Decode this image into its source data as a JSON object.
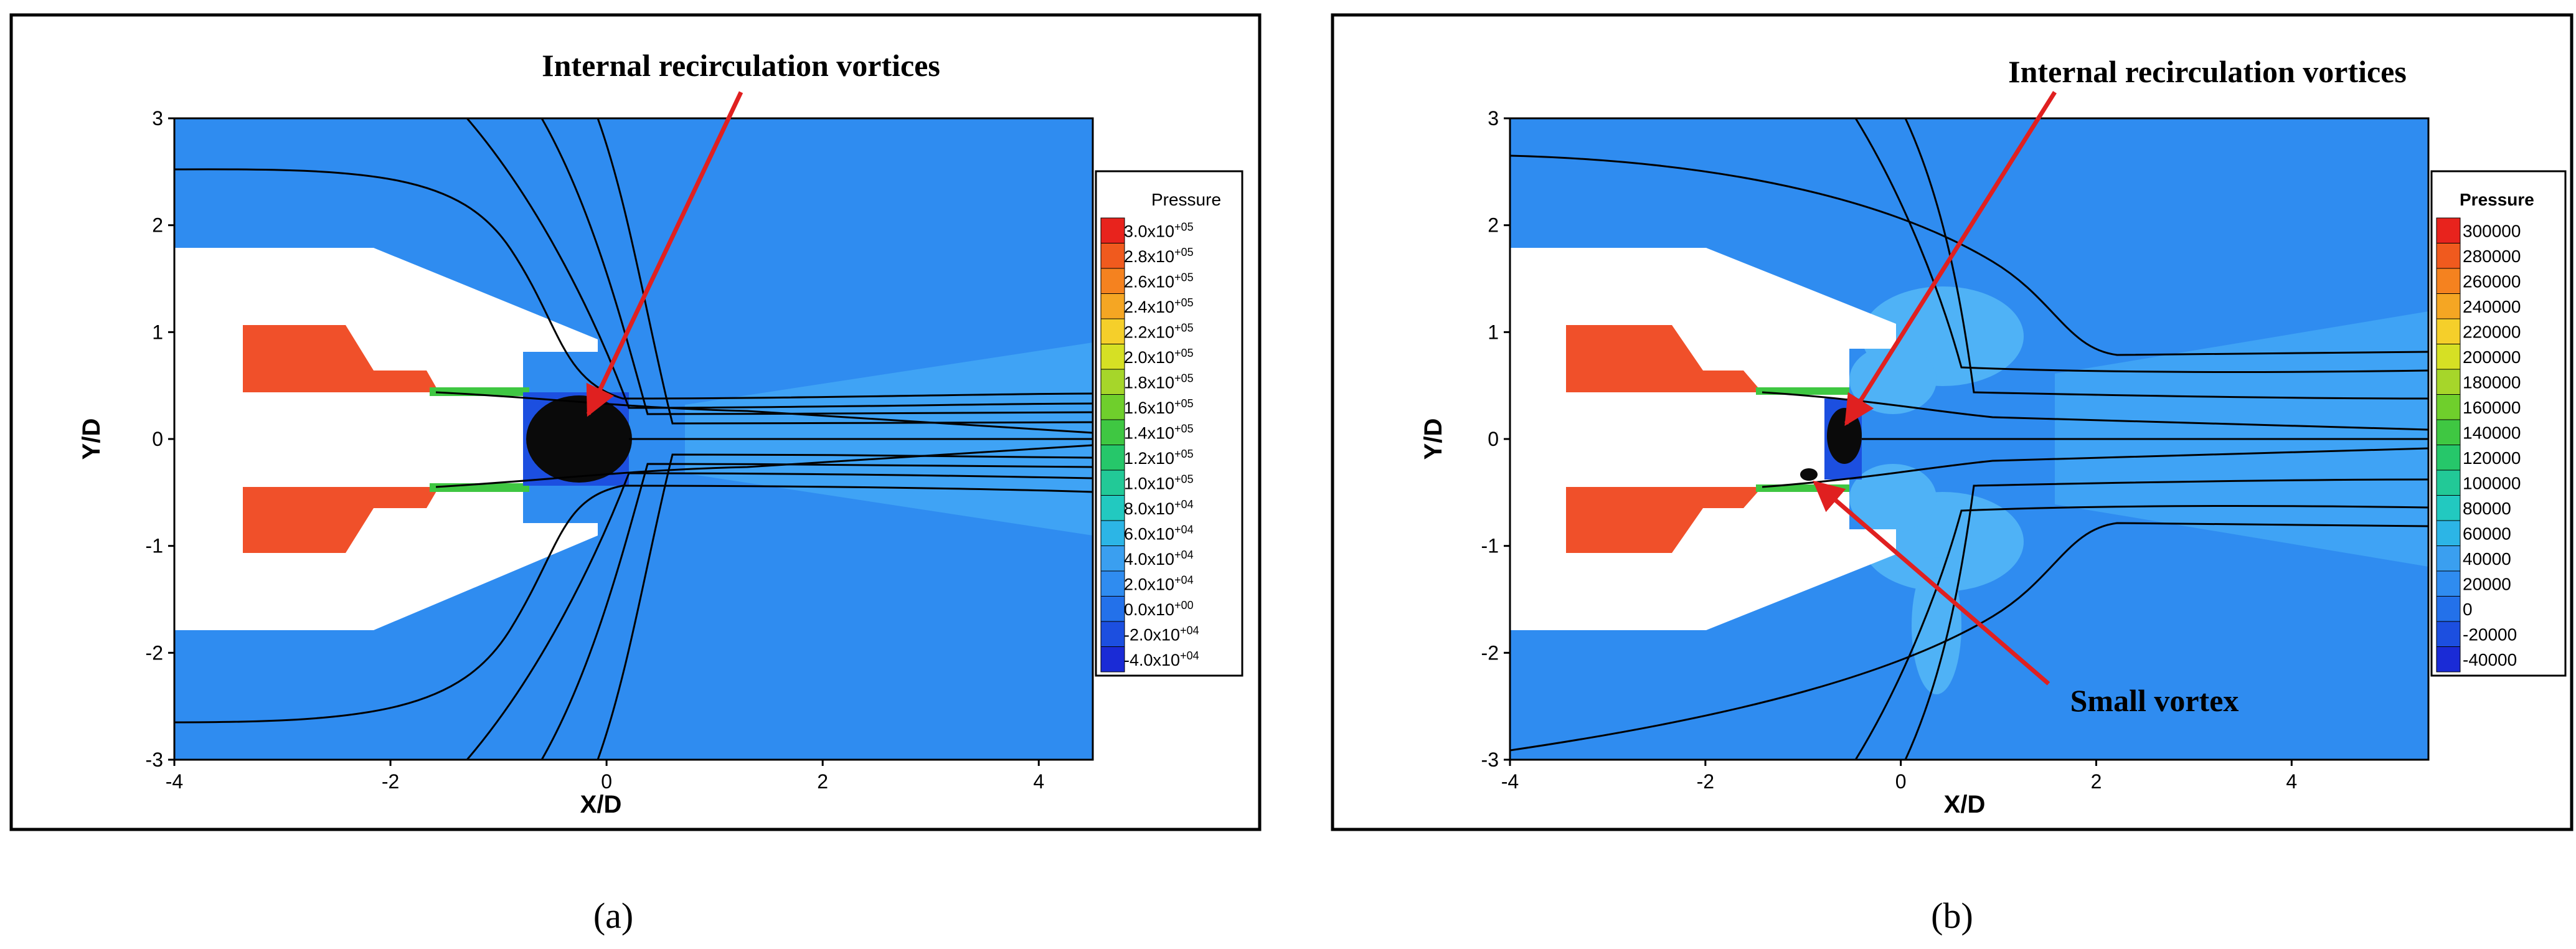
{
  "chart_data": [
    {
      "type": "contour",
      "panel_label": "(a)",
      "title": "",
      "xlabel": "X/D",
      "ylabel": "Y/D",
      "xlim": [
        -4,
        4.5
      ],
      "ylim": [
        -3,
        3
      ],
      "x_ticks": [
        "-4",
        "-2",
        "0",
        "2",
        "4"
      ],
      "y_ticks": [
        "3",
        "2",
        "1",
        "0",
        "-1",
        "-2",
        "-3"
      ],
      "annotations": [
        {
          "text": "Internal recirculation vortices",
          "target": [
            -0.15,
            0.2
          ]
        }
      ],
      "legend": {
        "title": "Pressure",
        "position": "right",
        "levels": [
          "3.0x10+05",
          "2.8x10+05",
          "2.6x10+05",
          "2.4x10+05",
          "2.2x10+05",
          "2.0x10+05",
          "1.8x10+05",
          "1.6x10+05",
          "1.4x10+05",
          "1.2x10+05",
          "1.0x10+05",
          "8.0x10+04",
          "6.0x10+04",
          "4.0x10+04",
          "2.0x10+04",
          "0.0x10+00",
          "-2.0x10+04",
          "-4.0x10+04"
        ]
      }
    },
    {
      "type": "contour",
      "panel_label": "(b)",
      "title": "",
      "xlabel": "X/D",
      "ylabel": "Y/D",
      "xlim": [
        -4,
        5.4
      ],
      "ylim": [
        -3,
        3
      ],
      "x_ticks": [
        "-4",
        "-2",
        "0",
        "2",
        "4"
      ],
      "y_ticks": [
        "3",
        "2",
        "1",
        "0",
        "-1",
        "-2",
        "-3"
      ],
      "annotations": [
        {
          "text": "Internal recirculation vortices",
          "target": [
            -0.5,
            0.1
          ]
        },
        {
          "text": "Small vortex",
          "target": [
            -0.8,
            -0.35
          ]
        }
      ],
      "legend": {
        "title": "Pressure",
        "position": "right",
        "levels": [
          "300000",
          "280000",
          "260000",
          "240000",
          "220000",
          "200000",
          "180000",
          "160000",
          "140000",
          "120000",
          "100000",
          "80000",
          "60000",
          "40000",
          "20000",
          "0",
          "-20000",
          "-40000"
        ]
      }
    }
  ],
  "colors": {
    "field": "#2f8cf0",
    "fuel": "#f0502a",
    "legend": [
      "#e8231d",
      "#f05a1e",
      "#f5821f",
      "#f5a623",
      "#f5cf2a",
      "#d6e024",
      "#a6d62a",
      "#6fcf2c",
      "#3fc742",
      "#26c76a",
      "#22c997",
      "#22c9c0",
      "#2cb5e6",
      "#3a9ff0",
      "#2f8cf0",
      "#2371ea",
      "#1c4fe0",
      "#1a2bd6"
    ]
  }
}
